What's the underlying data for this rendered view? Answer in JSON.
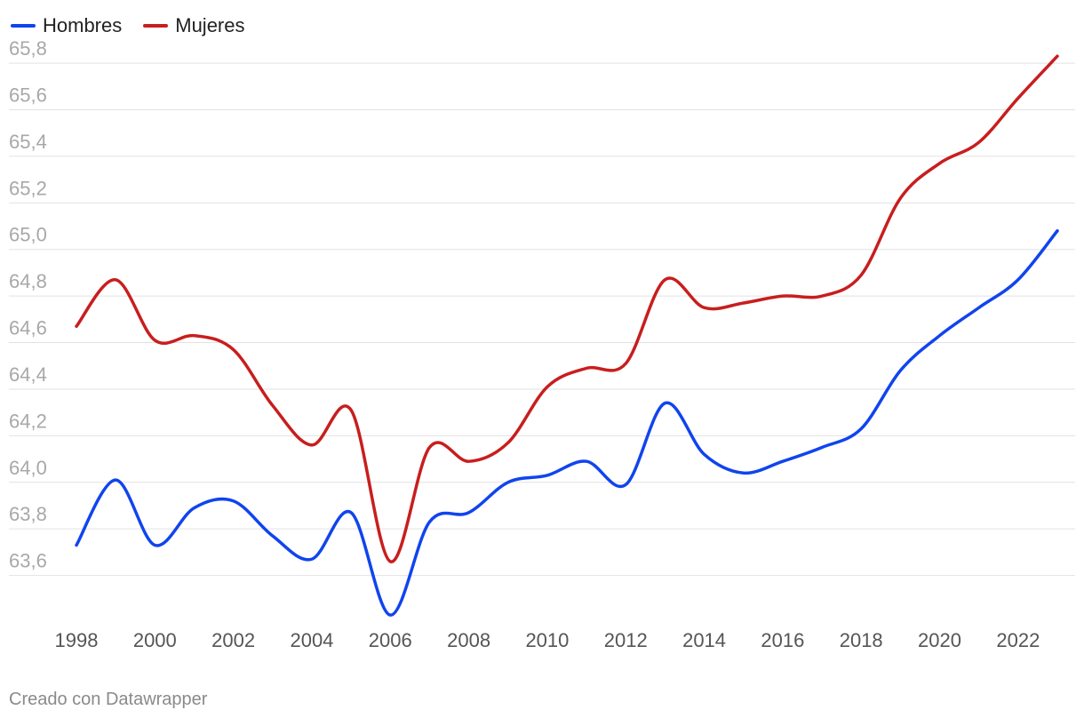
{
  "footer": {
    "credit": "Creado con Datawrapper"
  },
  "chart_data": {
    "type": "line",
    "title": "",
    "xlabel": "",
    "ylabel": "",
    "x": [
      1998,
      1999,
      2000,
      2001,
      2002,
      2003,
      2004,
      2005,
      2006,
      2007,
      2008,
      2009,
      2010,
      2011,
      2012,
      2013,
      2014,
      2015,
      2016,
      2017,
      2018,
      2019,
      2020,
      2021,
      2022,
      2023
    ],
    "x_ticks": [
      "1998",
      "2000",
      "2002",
      "2004",
      "2006",
      "2008",
      "2010",
      "2012",
      "2014",
      "2016",
      "2018",
      "2020",
      "2022"
    ],
    "x_range": [
      1998,
      2023
    ],
    "ylim": [
      63.4,
      65.85
    ],
    "y_ticks": [
      {
        "value": 63.6,
        "label": "63,6"
      },
      {
        "value": 63.8,
        "label": "63,8"
      },
      {
        "value": 64.0,
        "label": "64,0"
      },
      {
        "value": 64.2,
        "label": "64,2"
      },
      {
        "value": 64.4,
        "label": "64,4"
      },
      {
        "value": 64.6,
        "label": "64,6"
      },
      {
        "value": 64.8,
        "label": "64,8"
      },
      {
        "value": 65.0,
        "label": "65,0"
      },
      {
        "value": 65.2,
        "label": "65,2"
      },
      {
        "value": 65.4,
        "label": "65,4"
      },
      {
        "value": 65.6,
        "label": "65,6"
      },
      {
        "value": 65.8,
        "label": "65,8"
      }
    ],
    "grid": true,
    "legend_position": "top-left",
    "series": [
      {
        "name": "Hombres",
        "color": "#1044ee",
        "values": [
          63.73,
          64.01,
          63.73,
          63.89,
          63.92,
          63.77,
          63.67,
          63.87,
          63.43,
          63.83,
          63.87,
          64.0,
          64.03,
          64.09,
          63.99,
          64.34,
          64.12,
          64.04,
          64.09,
          64.15,
          64.23,
          64.48,
          64.63,
          64.75,
          64.87,
          65.08
        ]
      },
      {
        "name": "Mujeres",
        "color": "#c81e1e",
        "values": [
          64.67,
          64.87,
          64.61,
          64.63,
          64.57,
          64.33,
          64.16,
          64.31,
          63.66,
          64.15,
          64.09,
          64.17,
          64.41,
          64.49,
          64.51,
          64.87,
          64.75,
          64.77,
          64.8,
          64.8,
          64.89,
          65.22,
          65.37,
          65.46,
          65.65,
          65.83
        ]
      }
    ]
  }
}
